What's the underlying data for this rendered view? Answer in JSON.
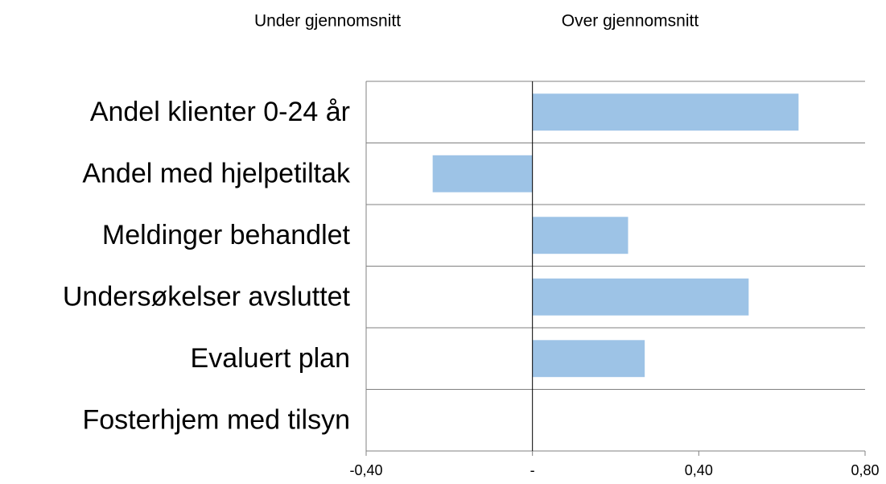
{
  "chart_data": {
    "type": "hbar",
    "annotations": [
      "Under gjennomsnitt",
      "Over gjennomsnitt"
    ],
    "categories": [
      "Andel klienter 0-24 år",
      "Andel med hjelpetiltak",
      "Meldinger behandlet",
      "Undersøkelser avsluttet",
      "Evaluert plan",
      "Fosterhjem med tilsyn"
    ],
    "values": [
      0.64,
      -0.24,
      0.23,
      0.52,
      0.27,
      0
    ],
    "color": "#9dc3e6",
    "xlim": [
      -0.4,
      0.8
    ],
    "xticks": [
      {
        "value": -0.4,
        "label": "-0,40"
      },
      {
        "value": 0,
        "label": "-"
      },
      {
        "value": 0.4,
        "label": "0,40"
      },
      {
        "value": 0.8,
        "label": "0,80"
      }
    ]
  }
}
